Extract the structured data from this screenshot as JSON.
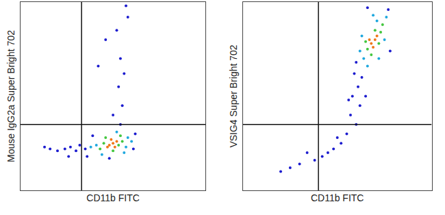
{
  "chart_data": [
    {
      "type": "scatter",
      "x_label": "CD11b FITC",
      "y_label": "Mouse IgG2a Super Bright 702",
      "xlim": [
        0,
        100
      ],
      "ylim": [
        0,
        100
      ],
      "tick_labels": false,
      "grid": false,
      "quadrant": {
        "x": 33,
        "y": 35
      },
      "density_range": [
        1,
        4
      ],
      "x": [
        48,
        50,
        52,
        47,
        51,
        49,
        53,
        45,
        55,
        50,
        46,
        54,
        43,
        57,
        41,
        52,
        58,
        44,
        56,
        38,
        60,
        35,
        32,
        30,
        27,
        24,
        20,
        16,
        13,
        39,
        61,
        62,
        36,
        48,
        54,
        50,
        55,
        53,
        56,
        54,
        52,
        57,
        46,
        42,
        58,
        26
      ],
      "y": [
        24,
        25,
        26,
        23,
        23,
        27,
        24,
        25,
        26,
        21,
        28,
        29,
        22,
        23,
        24,
        31,
        28,
        19,
        20,
        23,
        26,
        22,
        24,
        21,
        23,
        22,
        21,
        22,
        23,
        29,
        22,
        30,
        18,
        17,
        35,
        40,
        45,
        55,
        62,
        70,
        85,
        98,
        80,
        66,
        92,
        18
      ],
      "density": [
        4,
        4,
        4,
        4,
        4,
        4,
        3,
        3,
        3,
        3,
        3,
        3,
        3,
        2,
        2,
        2,
        2,
        2,
        2,
        2,
        2,
        1,
        1,
        1,
        1,
        1,
        1,
        1,
        1,
        1,
        1,
        1,
        1,
        1,
        1,
        1,
        1,
        1,
        1,
        1,
        1,
        1,
        1,
        1,
        1,
        1
      ]
    },
    {
      "type": "scatter",
      "x_label": "CD11b FITC",
      "y_label": "VSIG4 Super Bright 702",
      "xlim": [
        0,
        100
      ],
      "ylim": [
        0,
        100
      ],
      "tick_labels": false,
      "grid": false,
      "quadrant": {
        "x": 40,
        "y": 35
      },
      "density_range": [
        1,
        4
      ],
      "x": [
        68,
        70,
        69,
        71,
        67,
        72,
        66,
        70,
        73,
        65,
        68,
        74,
        71,
        64,
        75,
        63,
        69,
        62,
        76,
        66,
        72,
        60,
        63,
        61,
        58,
        62,
        57,
        60,
        55,
        52,
        48,
        45,
        42,
        38,
        30,
        25,
        20,
        34,
        65,
        78,
        59,
        56,
        77,
        66,
        50
      ],
      "y": [
        78,
        80,
        76,
        82,
        80,
        78,
        75,
        85,
        84,
        79,
        72,
        88,
        90,
        70,
        80,
        82,
        93,
        74,
        92,
        66,
        70,
        68,
        60,
        55,
        50,
        45,
        40,
        35,
        30,
        25,
        22,
        20,
        18,
        16,
        14,
        12,
        10,
        20,
        50,
        74,
        62,
        48,
        96,
        97,
        28
      ],
      "density": [
        4,
        4,
        4,
        4,
        4,
        3,
        3,
        3,
        3,
        3,
        3,
        3,
        2,
        2,
        2,
        2,
        2,
        2,
        2,
        2,
        2,
        1,
        1,
        1,
        1,
        1,
        1,
        1,
        1,
        1,
        1,
        1,
        1,
        1,
        1,
        1,
        1,
        1,
        1,
        1,
        1,
        1,
        1,
        1,
        1
      ]
    }
  ]
}
